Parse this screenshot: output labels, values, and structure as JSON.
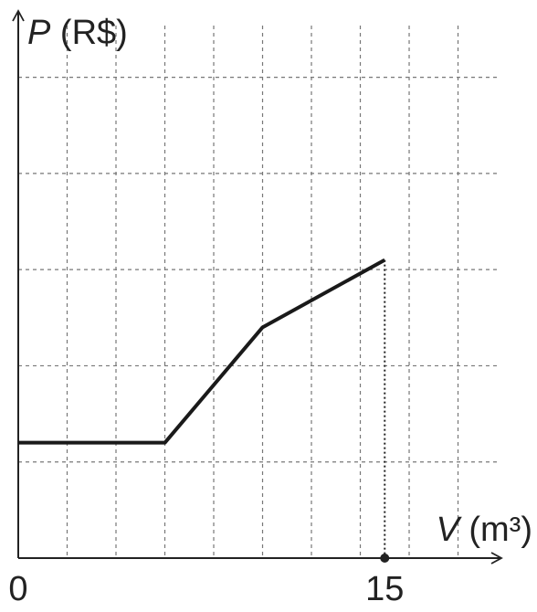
{
  "chart_data": {
    "type": "line",
    "x_label_var": "V",
    "x_label_unit": "(m³)",
    "y_label_var": "P",
    "y_label_unit": "(R$)",
    "x": [
      0,
      6,
      10,
      15
    ],
    "series": [
      {
        "values": [
          1.2,
          1.2,
          2.4,
          3.1
        ],
        "color": "#1a1a1a"
      }
    ],
    "xlim": [
      0,
      19.7
    ],
    "ylim": [
      0,
      5.68
    ],
    "xticks": [
      0,
      15
    ],
    "xgrid": [
      2,
      4,
      6,
      8,
      10,
      12,
      14,
      16,
      18
    ],
    "ygrid": [
      1,
      2,
      3,
      4,
      5
    ],
    "grid": true
  }
}
